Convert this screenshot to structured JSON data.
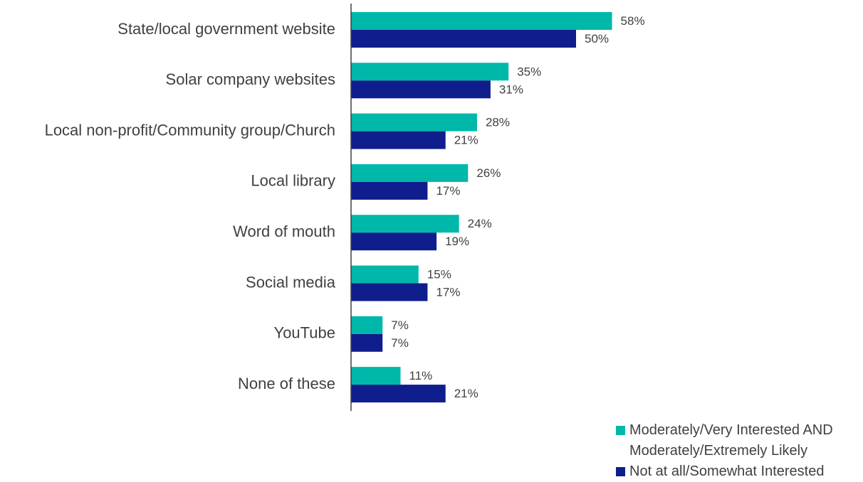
{
  "chart_data": {
    "type": "bar",
    "orientation": "horizontal",
    "categories": [
      "State/local government website",
      "Solar company websites",
      "Local non-profit/Community group/Church",
      "Local library",
      "Word of mouth",
      "Social media",
      "YouTube",
      "None of these"
    ],
    "series": [
      {
        "name": "Moderately/Very Interested AND Moderately/Extremely Likely",
        "color": "#00B8AA",
        "values": [
          58,
          35,
          28,
          26,
          24,
          15,
          7,
          11
        ],
        "labels": [
          "58%",
          "35%",
          "28%",
          "26%",
          "24%",
          "15%",
          "7%",
          "11%"
        ]
      },
      {
        "name": "Not at all/Somewhat Interested",
        "color": "#0F1E8C",
        "values": [
          50,
          31,
          21,
          17,
          19,
          17,
          7,
          21
        ],
        "labels": [
          "50%",
          "31%",
          "21%",
          "17%",
          "19%",
          "17%",
          "7%",
          "21%"
        ]
      }
    ],
    "xlim": [
      0,
      100
    ],
    "grid": false,
    "legend_position": "bottom-right"
  },
  "legend": {
    "series1_line1": "Moderately/Very Interested AND",
    "series1_line2": "Moderately/Extremely Likely",
    "series2": "Not at all/Somewhat Interested"
  }
}
